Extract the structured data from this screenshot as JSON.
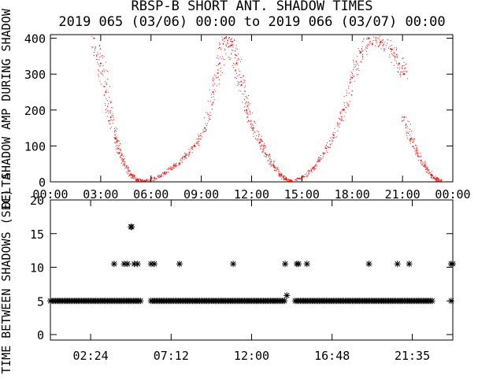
{
  "title": "RBSP-B SHORT ANT. SHADOW TIMES",
  "subtitle": "2019 065 (03/06) 00:00 to 2019 066 (03/07) 00:00",
  "colors": {
    "series": "#ff0000",
    "ink": "#000000",
    "background": "#ffffff"
  },
  "chart_data": [
    {
      "type": "scatter",
      "title": "RBSP-B SHORT ANT. SHADOW TIMES",
      "ylabel": "SHADOW AMP DURING SHADOW",
      "x_ticks": [
        "00:00",
        "03:00",
        "06:00",
        "09:00",
        "12:00",
        "15:00",
        "18:00",
        "21:00",
        "00:00"
      ],
      "xlim_hours": [
        0,
        24
      ],
      "y_ticks": [
        0,
        100,
        200,
        300,
        400
      ],
      "ylim": [
        0,
        410
      ],
      "marker": "dot",
      "color": "#ff0000",
      "series": [
        {
          "segments": [
            {
              "x": [
                2.6,
                3.0,
                3.3,
                3.6,
                3.9,
                4.1,
                4.4,
                4.8,
                5.2,
                5.5
              ],
              "y": [
                400,
                330,
                250,
                180,
                120,
                80,
                50,
                20,
                5,
                0
              ]
            },
            {
              "x": [
                5.6,
                6.2,
                6.8,
                7.4,
                8.0,
                8.6,
                9.2,
                9.7,
                10.1,
                10.4,
                10.8,
                11.1,
                11.4,
                11.7
              ],
              "y": [
                0,
                10,
                25,
                45,
                70,
                100,
                150,
                250,
                330,
                400,
                380,
                330,
                270,
                200
              ]
            },
            {
              "x": [
                11.7,
                12.1,
                12.5,
                12.9,
                13.3,
                13.7,
                14.0,
                14.3
              ],
              "y": [
                200,
                150,
                110,
                75,
                45,
                20,
                8,
                0
              ]
            },
            {
              "x": [
                14.4,
                15.1,
                15.7,
                16.3,
                16.9,
                17.5,
                18.0,
                18.5,
                19.0
              ],
              "y": [
                0,
                15,
                40,
                80,
                130,
                200,
                290,
                360,
                400
              ]
            },
            {
              "x": [
                19.0,
                19.7,
                20.3,
                20.8,
                21.1
              ],
              "y": [
                400,
                390,
                370,
                330,
                300
              ]
            },
            {
              "x": [
                21.1,
                21.5,
                21.9,
                22.3,
                22.7,
                23.0,
                23.3
              ],
              "y": [
                180,
                120,
                80,
                45,
                20,
                8,
                0
              ]
            }
          ]
        }
      ]
    },
    {
      "type": "scatter",
      "ylabel": "TIME BETWEEN SHADOWS (SEC)",
      "ylabel_overprint": "DELTA",
      "x_ticks": [
        "02:24",
        "07:12",
        "12:00",
        "16:48",
        "21:35"
      ],
      "xlim_hours": [
        0,
        24
      ],
      "y_ticks": [
        0,
        5,
        10,
        15,
        20
      ],
      "ylim": [
        0,
        20
      ],
      "marker": "asterisk",
      "color": "#000000",
      "series": [
        {
          "bands": [
            {
              "y": 5,
              "x_ranges": [
                [
                  0.0,
                  5.4
                ],
                [
                  6.0,
                  14.0
                ],
                [
                  14.6,
                  22.8
                ]
              ]
            }
          ],
          "points": {
            "x": [
              3.8,
              4.4,
              4.6,
              4.8,
              5.0,
              5.2,
              6.0,
              6.2,
              7.7,
              10.9,
              14.0,
              14.7,
              14.8,
              15.3,
              19.0,
              20.7,
              21.4,
              23.9,
              24.0,
              4.85,
              14.1,
              23.9
            ],
            "y": [
              10.5,
              10.5,
              10.5,
              16,
              10.5,
              10.5,
              10.5,
              10.5,
              10.5,
              10.5,
              10.5,
              10.5,
              10.5,
              10.5,
              10.5,
              10.5,
              10.5,
              10.5,
              10.5,
              16,
              5.8,
              5
            ]
          }
        }
      ]
    }
  ]
}
